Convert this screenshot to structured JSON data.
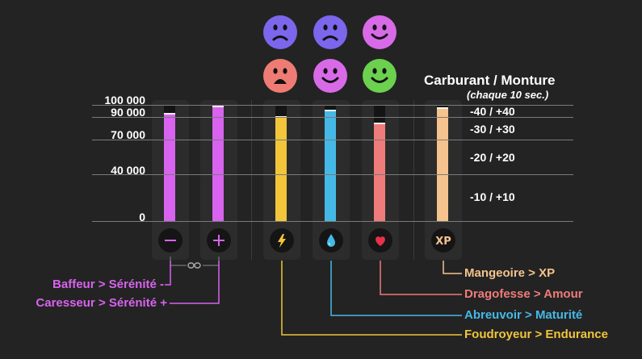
{
  "moods": [
    {
      "icon": "sad-face-icon",
      "color": "#7b66ec",
      "expression": "sad"
    },
    {
      "icon": "sad-face-icon",
      "color": "#7b66ec",
      "expression": "sad"
    },
    {
      "icon": "happy-face-icon",
      "color": "#d86ae8",
      "expression": "happy"
    },
    {
      "icon": "shocked-face-icon",
      "color": "#ef7c74",
      "expression": "shocked"
    },
    {
      "icon": "happy-face-icon",
      "color": "#d86ae8",
      "expression": "happy"
    },
    {
      "icon": "happy-face-icon",
      "color": "#6bd14e",
      "expression": "happy"
    }
  ],
  "header": {
    "title": "Carburant / Monture",
    "subtitle": "(chaque 10 sec.)"
  },
  "scale": {
    "labels": [
      "100 000",
      "90 000",
      "70 000",
      "40 000",
      "0"
    ]
  },
  "rates": [
    "-40 / +40",
    "-30 / +30",
    "-20 / +20",
    "-10 / +10"
  ],
  "bars": [
    {
      "name": "baffeur",
      "icon": "minus-icon",
      "color": "#d863ee",
      "level": 0.93
    },
    {
      "name": "caresseur",
      "icon": "plus-icon",
      "color": "#d863ee",
      "level": 0.99
    },
    {
      "name": "foudroyeur",
      "icon": "lightning-icon",
      "color": "#f2c53a",
      "level": 0.9
    },
    {
      "name": "abreuvoir",
      "icon": "water-drop-icon",
      "color": "#45b9e6",
      "level": 0.96
    },
    {
      "name": "dragofesse",
      "icon": "heart-icon",
      "color": "#f07b7b",
      "level": 0.85
    },
    {
      "name": "mangeoire",
      "icon": "xp-icon",
      "color": "#f5c38d",
      "level": 0.98
    }
  ],
  "legend": {
    "baffeur": "Baffeur > Sérénité -",
    "caresseur": "Caresseur > Sérénité +",
    "mangeoire": "Mangeoire > XP",
    "dragofesse": "Dragofesse > Amour",
    "abreuvoir": "Abreuvoir > Maturité",
    "foudroyeur": "Foudroyeur > Endurance"
  },
  "colors": {
    "serenite": "#d863ee",
    "xp": "#f5c38d",
    "amour": "#f07b7b",
    "maturite": "#45b9e6",
    "endurance": "#f2c53a"
  }
}
